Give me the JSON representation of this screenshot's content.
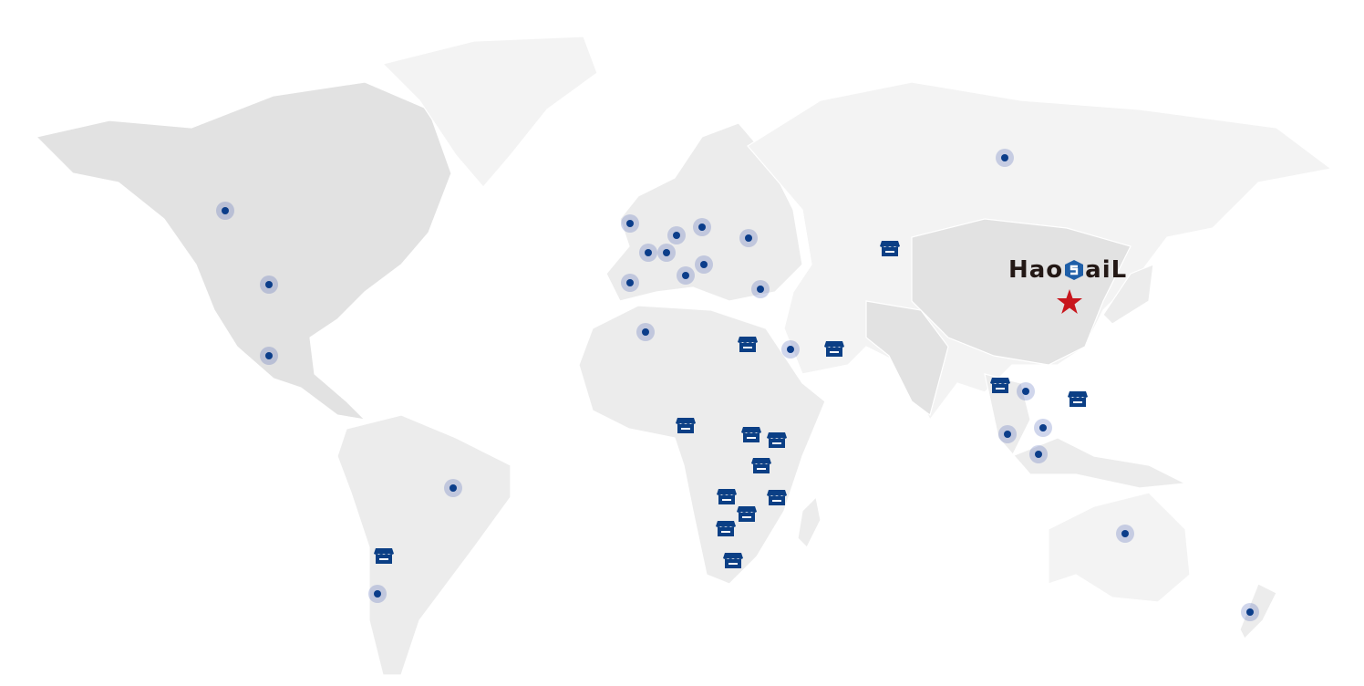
{
  "brand": {
    "logo_text": "HaoSaiL",
    "logo_prefix": "Hao",
    "logo_suffix": "aiL"
  },
  "colors": {
    "marker": "#0b3d8a",
    "store": "#0b3f85",
    "star": "#c8161d",
    "land": "#ececec"
  },
  "legend_icons": {
    "office": "dot-marker",
    "store": "store-icon",
    "headquarters": "star-icon"
  }
}
